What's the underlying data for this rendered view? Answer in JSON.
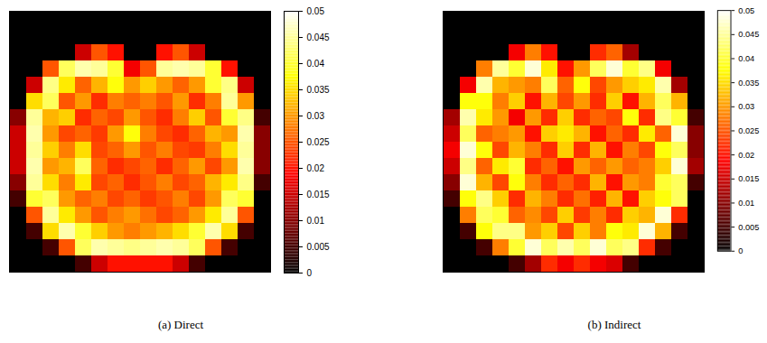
{
  "chart_data": [
    {
      "type": "heatmap",
      "title": "(a) Direct",
      "tick_labels": false,
      "colorbar_range": [
        0,
        0.05
      ],
      "colorbar_ticks": [
        0,
        0.005,
        0.01,
        0.015,
        0.02,
        0.025,
        0.03,
        0.035,
        0.04,
        0.045,
        0.05
      ],
      "cells": [
        [
          0,
          0,
          0,
          0,
          0,
          0,
          0,
          0,
          0,
          0,
          0,
          0,
          0,
          0,
          0,
          0
        ],
        [
          0,
          0,
          0,
          0,
          0,
          0,
          0,
          0,
          0,
          0,
          0,
          0,
          0,
          0,
          0,
          0
        ],
        [
          0,
          0,
          0,
          0,
          0.015,
          0.025,
          0.02,
          0,
          0,
          0.02,
          0.025,
          0.015,
          0,
          0,
          0,
          0
        ],
        [
          0,
          0,
          0.025,
          0.042,
          0.046,
          0.045,
          0.04,
          0.018,
          0.025,
          0.045,
          0.046,
          0.045,
          0.04,
          0.02,
          0,
          0
        ],
        [
          0,
          0.015,
          0.044,
          0.036,
          0.026,
          0.032,
          0.038,
          0.03,
          0.034,
          0.03,
          0.026,
          0.03,
          0.04,
          0.044,
          0.015,
          0
        ],
        [
          0,
          0.035,
          0.042,
          0.025,
          0.03,
          0.022,
          0.028,
          0.026,
          0.028,
          0.025,
          0.03,
          0.022,
          0.028,
          0.045,
          0.03,
          0
        ],
        [
          0.01,
          0.045,
          0.032,
          0.034,
          0.022,
          0.026,
          0.024,
          0.03,
          0.025,
          0.022,
          0.028,
          0.034,
          0.025,
          0.04,
          0.044,
          0.005
        ],
        [
          0.015,
          0.046,
          0.03,
          0.024,
          0.026,
          0.023,
          0.03,
          0.038,
          0.028,
          0.024,
          0.022,
          0.026,
          0.032,
          0.03,
          0.046,
          0.01
        ],
        [
          0.015,
          0.045,
          0.034,
          0.028,
          0.035,
          0.024,
          0.026,
          0.03,
          0.025,
          0.028,
          0.024,
          0.023,
          0.028,
          0.035,
          0.045,
          0.01
        ],
        [
          0.015,
          0.046,
          0.03,
          0.032,
          0.042,
          0.026,
          0.022,
          0.024,
          0.026,
          0.022,
          0.026,
          0.03,
          0.024,
          0.03,
          0.046,
          0.01
        ],
        [
          0.01,
          0.045,
          0.035,
          0.028,
          0.036,
          0.024,
          0.026,
          0.022,
          0.025,
          0.028,
          0.024,
          0.026,
          0.032,
          0.036,
          0.044,
          0.005
        ],
        [
          0.005,
          0.04,
          0.042,
          0.03,
          0.026,
          0.028,
          0.024,
          0.026,
          0.023,
          0.025,
          0.028,
          0.024,
          0.03,
          0.042,
          0.04,
          0
        ],
        [
          0,
          0.025,
          0.045,
          0.036,
          0.03,
          0.025,
          0.028,
          0.03,
          0.027,
          0.024,
          0.026,
          0.03,
          0.036,
          0.045,
          0.025,
          0
        ],
        [
          0,
          0.005,
          0.035,
          0.046,
          0.04,
          0.034,
          0.03,
          0.028,
          0.03,
          0.032,
          0.035,
          0.04,
          0.046,
          0.035,
          0.005,
          0
        ],
        [
          0,
          0,
          0.005,
          0.025,
          0.042,
          0.046,
          0.045,
          0.044,
          0.045,
          0.046,
          0.045,
          0.042,
          0.025,
          0.005,
          0,
          0
        ],
        [
          0,
          0,
          0,
          0,
          0.005,
          0.015,
          0.02,
          0.02,
          0.02,
          0.02,
          0.015,
          0.005,
          0,
          0,
          0,
          0
        ]
      ]
    },
    {
      "type": "heatmap",
      "title": "(b) Indirect",
      "tick_labels": false,
      "colorbar_range": [
        0,
        0.05
      ],
      "colorbar_ticks": [
        0,
        0.005,
        0.01,
        0.015,
        0.02,
        0.025,
        0.03,
        0.035,
        0.04,
        0.045,
        0.05
      ],
      "cells": [
        [
          0,
          0,
          0,
          0,
          0,
          0,
          0,
          0,
          0,
          0,
          0,
          0,
          0,
          0,
          0,
          0
        ],
        [
          0,
          0,
          0,
          0,
          0,
          0,
          0,
          0,
          0,
          0,
          0,
          0,
          0,
          0,
          0,
          0
        ],
        [
          0,
          0,
          0,
          0,
          0.018,
          0.028,
          0.02,
          0,
          0,
          0.022,
          0.026,
          0.012,
          0,
          0,
          0,
          0
        ],
        [
          0,
          0,
          0.028,
          0.045,
          0.04,
          0.048,
          0.036,
          0.02,
          0.03,
          0.042,
          0.048,
          0.04,
          0.044,
          0.018,
          0,
          0
        ],
        [
          0,
          0.018,
          0.046,
          0.032,
          0.03,
          0.028,
          0.042,
          0.026,
          0.038,
          0.024,
          0.03,
          0.034,
          0.036,
          0.046,
          0.012,
          0
        ],
        [
          0,
          0.038,
          0.038,
          0.028,
          0.034,
          0.02,
          0.032,
          0.024,
          0.03,
          0.022,
          0.034,
          0.02,
          0.032,
          0.042,
          0.032,
          0
        ],
        [
          0.012,
          0.046,
          0.036,
          0.03,
          0.018,
          0.03,
          0.022,
          0.034,
          0.022,
          0.026,
          0.024,
          0.038,
          0.022,
          0.044,
          0.04,
          0.005
        ],
        [
          0.015,
          0.042,
          0.026,
          0.028,
          0.03,
          0.02,
          0.034,
          0.036,
          0.032,
          0.02,
          0.026,
          0.022,
          0.036,
          0.026,
          0.048,
          0.01
        ],
        [
          0.018,
          0.048,
          0.038,
          0.024,
          0.032,
          0.028,
          0.022,
          0.034,
          0.022,
          0.032,
          0.02,
          0.028,
          0.024,
          0.038,
          0.042,
          0.01
        ],
        [
          0.015,
          0.044,
          0.026,
          0.036,
          0.04,
          0.022,
          0.026,
          0.02,
          0.03,
          0.026,
          0.03,
          0.026,
          0.028,
          0.034,
          0.048,
          0.012
        ],
        [
          0.01,
          0.048,
          0.032,
          0.024,
          0.038,
          0.028,
          0.022,
          0.026,
          0.022,
          0.032,
          0.02,
          0.03,
          0.028,
          0.04,
          0.042,
          0.005
        ],
        [
          0.005,
          0.038,
          0.044,
          0.034,
          0.022,
          0.032,
          0.028,
          0.022,
          0.027,
          0.021,
          0.032,
          0.02,
          0.034,
          0.038,
          0.042,
          0
        ],
        [
          0,
          0.028,
          0.042,
          0.04,
          0.026,
          0.029,
          0.024,
          0.034,
          0.023,
          0.028,
          0.022,
          0.034,
          0.032,
          0.048,
          0.022,
          0
        ],
        [
          0,
          0.005,
          0.038,
          0.044,
          0.044,
          0.03,
          0.034,
          0.024,
          0.034,
          0.028,
          0.038,
          0.036,
          0.048,
          0.032,
          0.005,
          0
        ],
        [
          0,
          0,
          0.005,
          0.028,
          0.04,
          0.048,
          0.042,
          0.046,
          0.042,
          0.048,
          0.042,
          0.044,
          0.022,
          0.005,
          0,
          0
        ],
        [
          0,
          0,
          0,
          0,
          0.005,
          0.012,
          0.022,
          0.018,
          0.022,
          0.018,
          0.016,
          0.005,
          0,
          0,
          0,
          0
        ]
      ]
    }
  ]
}
